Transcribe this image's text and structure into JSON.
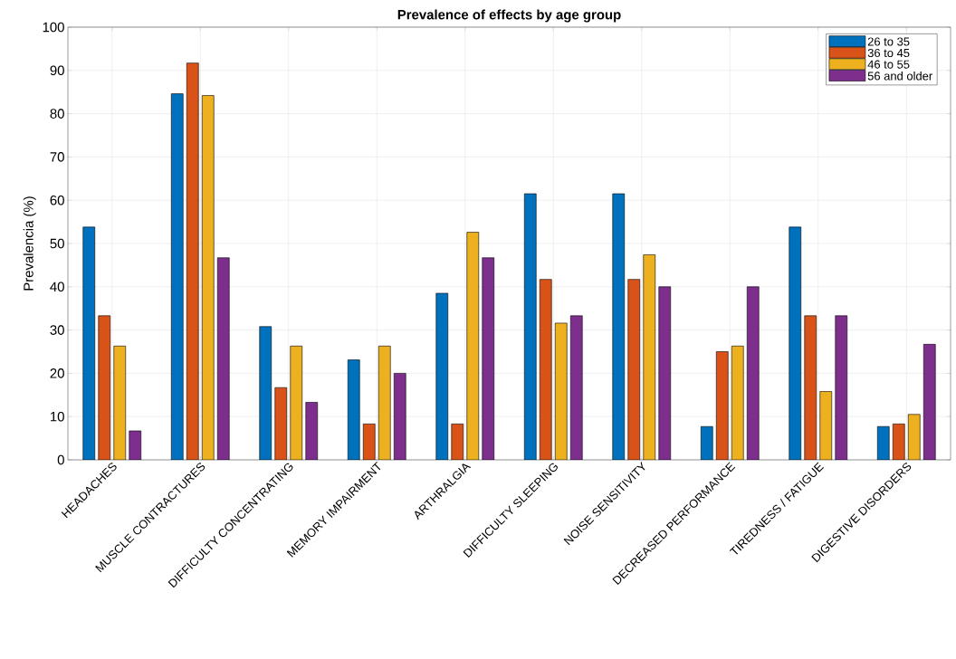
{
  "chart_data": {
    "type": "bar",
    "title": "Prevalence of effects by age group",
    "ylabel": "Prevalencia (%)",
    "categories": [
      "HEADACHES",
      "MUSCLE CONTRACTURES",
      "DIFFICULTY CONCENTRATING",
      "MEMORY IMPAIRMENT",
      "ARTHRALGIA",
      "DIFFICULTY SLEEPING",
      "NOISE SENSITIVITY",
      "DECREASED PERFORMANCE",
      "TIREDNESS / FATIGUE",
      "DIGESTIVE DISORDERS"
    ],
    "series": [
      {
        "name": "26 to 35",
        "color": "#0072bd",
        "values": [
          53.8,
          84.6,
          30.8,
          23.1,
          38.5,
          61.5,
          61.5,
          7.7,
          53.8,
          7.7
        ]
      },
      {
        "name": "36 to 45",
        "color": "#d95319",
        "values": [
          33.3,
          91.7,
          16.7,
          8.3,
          8.3,
          41.7,
          41.7,
          25.0,
          33.3,
          8.3
        ]
      },
      {
        "name": "46 to 55",
        "color": "#edb120",
        "values": [
          26.3,
          84.2,
          26.3,
          26.3,
          52.6,
          31.6,
          47.4,
          26.3,
          15.8,
          10.5
        ]
      },
      {
        "name": "56 and older",
        "color": "#7e2f8e",
        "values": [
          6.7,
          46.7,
          13.3,
          20.0,
          46.7,
          33.3,
          40.0,
          40.0,
          33.3,
          26.7
        ]
      }
    ],
    "ylim": [
      0,
      100
    ],
    "yticks": [
      0,
      10,
      20,
      30,
      40,
      50,
      60,
      70,
      80,
      90,
      100
    ],
    "grid": true,
    "legend": "top right"
  }
}
